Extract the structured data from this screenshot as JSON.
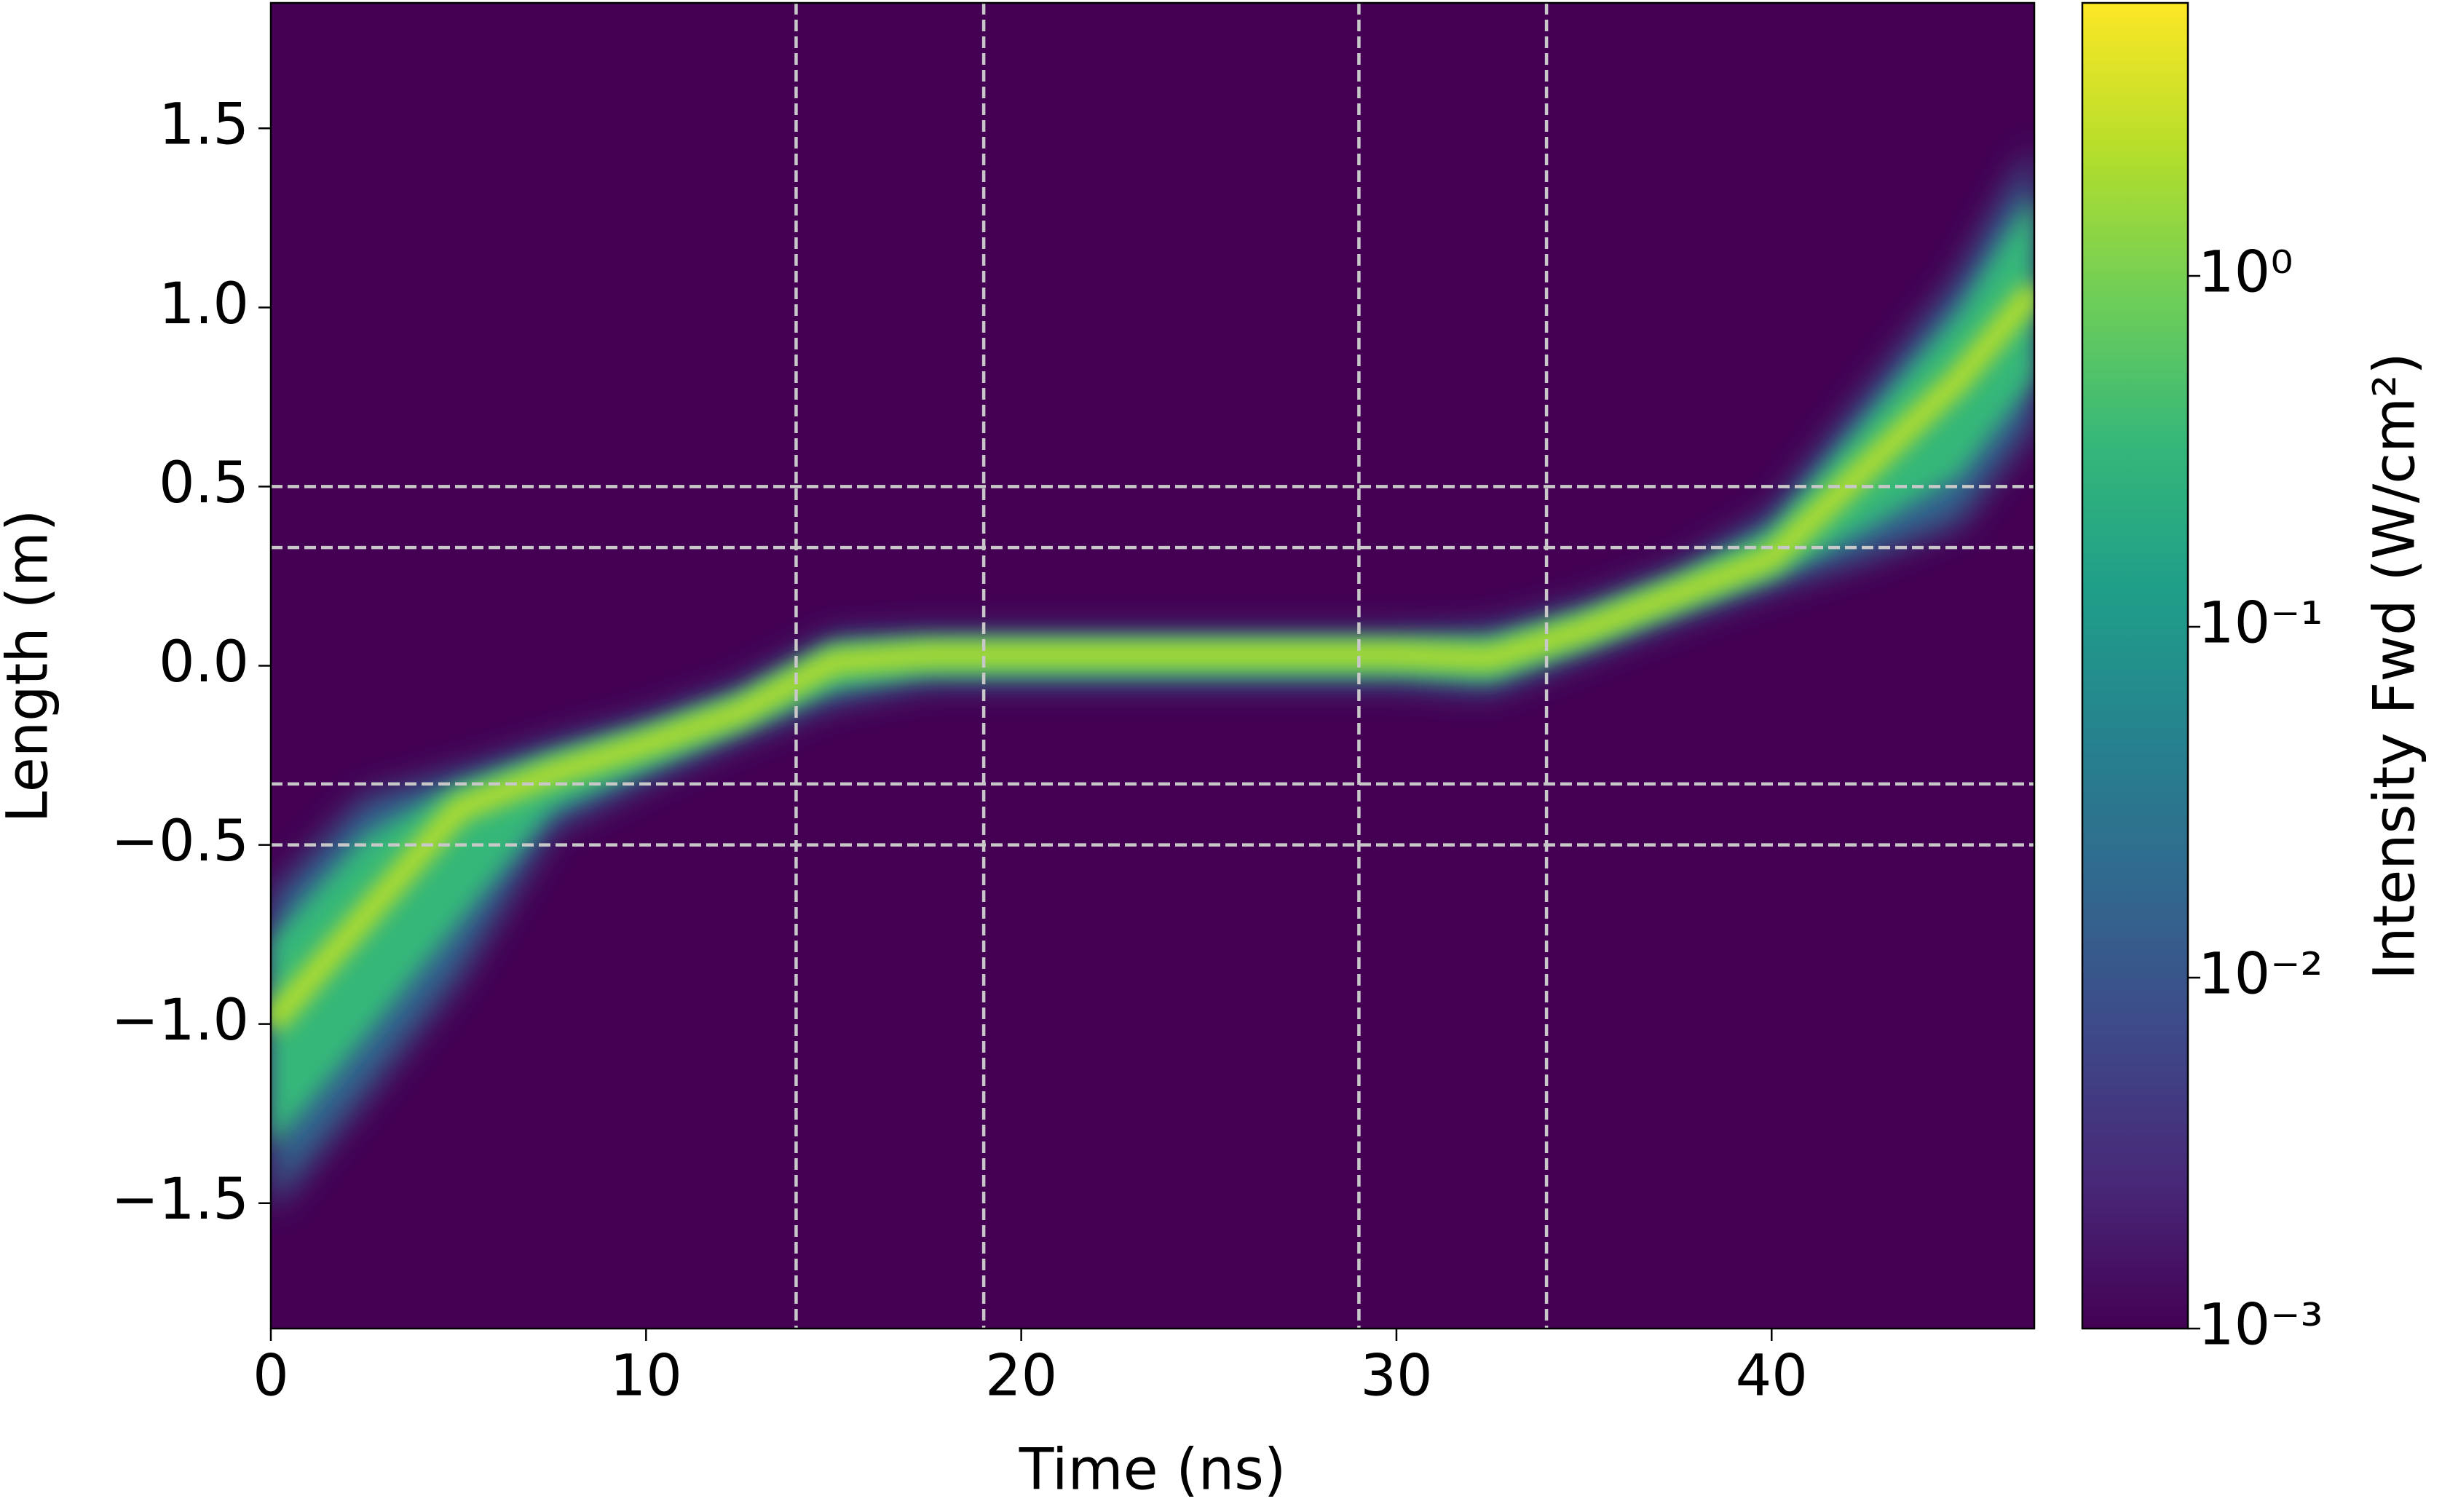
{
  "chart_data": {
    "type": "heatmap",
    "xlabel": "Time (ns)",
    "ylabel": "Length (m)",
    "xlim": [
      0,
      47
    ],
    "ylim": [
      -1.85,
      1.85
    ],
    "xticks": [
      0,
      10,
      20,
      30,
      40
    ],
    "yticks": [
      {
        "value": -1.5,
        "label": "−1.5"
      },
      {
        "value": -1.0,
        "label": "−1.0"
      },
      {
        "value": -0.5,
        "label": "−0.5"
      },
      {
        "value": 0,
        "label": "0.0"
      },
      0.5,
      {
        "value": 1.0,
        "label": "1.0"
      },
      1.5
    ],
    "vlines": [
      14,
      19,
      29,
      34
    ],
    "hlines": [
      0.5,
      0.33,
      -0.33,
      -0.5
    ],
    "line_color": "#c8c8c8",
    "band": {
      "x": [
        0,
        2.5,
        5,
        7.5,
        10,
        12.5,
        15,
        17.5,
        20,
        25,
        30,
        32.5,
        35,
        37.5,
        40,
        42.5,
        45,
        47
      ],
      "upper": [
        -0.65,
        -0.37,
        -0.3,
        -0.22,
        -0.15,
        -0.06,
        0.08,
        0.09,
        0.09,
        0.09,
        0.09,
        0.1,
        0.17,
        0.27,
        0.42,
        0.75,
        1.08,
        1.45
      ],
      "center": [
        -1.0,
        -0.7,
        -0.4,
        -0.3,
        -0.22,
        -0.13,
        0.01,
        0.03,
        0.03,
        0.03,
        0.03,
        0.02,
        0.1,
        0.2,
        0.3,
        0.55,
        0.8,
        1.05
      ],
      "lower": [
        -1.52,
        -1.2,
        -0.87,
        -0.45,
        -0.32,
        -0.2,
        -0.1,
        -0.05,
        -0.05,
        -0.05,
        -0.05,
        -0.07,
        0.03,
        0.13,
        0.22,
        0.3,
        0.4,
        0.68
      ]
    },
    "colormap": [
      "#440154",
      "#482878",
      "#3e4989",
      "#31688e",
      "#26828e",
      "#1f9e89",
      "#35b779",
      "#6ece58",
      "#b5de2b",
      "#fde725"
    ],
    "colorbar": {
      "label": "Intensity Fwd (W/cm²)",
      "log": true,
      "clim": [
        0.001,
        6
      ],
      "ticks": [
        {
          "value": 0.001,
          "label": "10⁻³"
        },
        {
          "value": 0.01,
          "label": "10⁻²"
        },
        {
          "value": 0.1,
          "label": "10⁻¹"
        },
        {
          "value": 1,
          "label": "10⁰"
        }
      ]
    }
  }
}
